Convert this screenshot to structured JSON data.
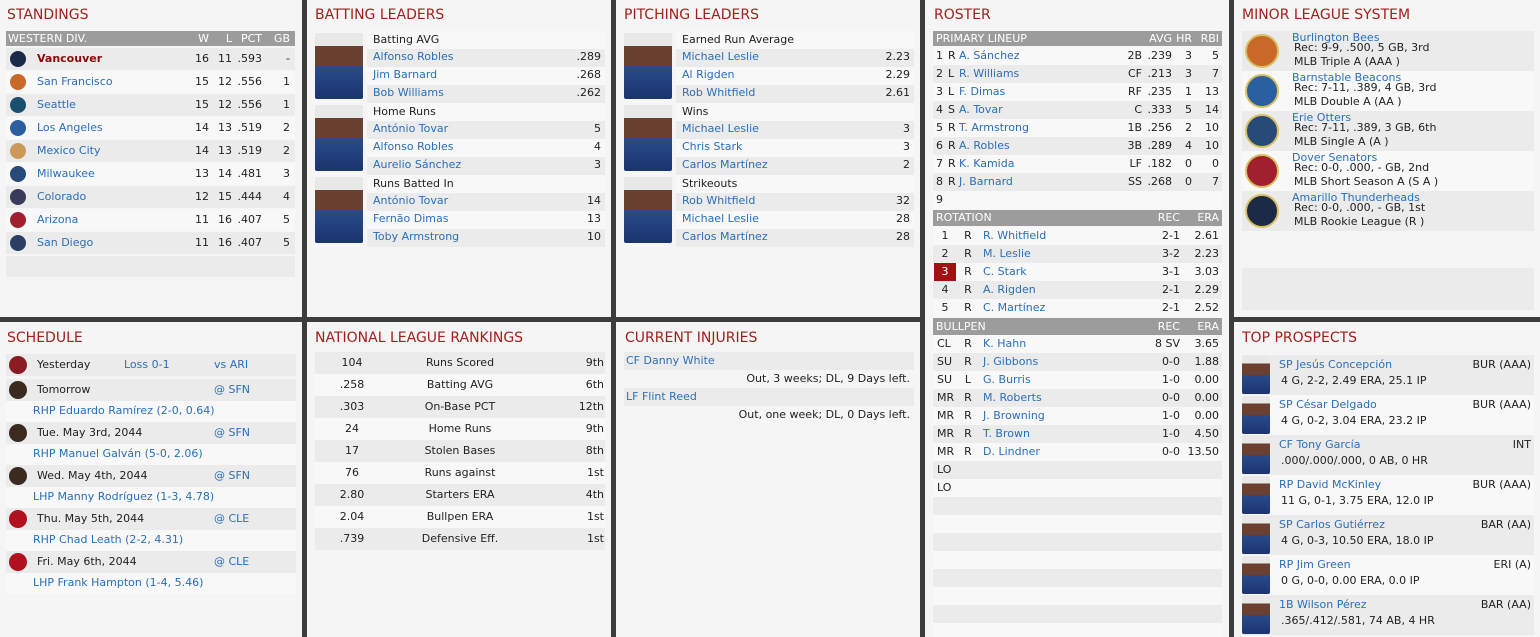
{
  "standings": {
    "title": "STANDINGS",
    "header": [
      "WESTERN DIV.",
      "W",
      "L",
      "PCT",
      "GB"
    ],
    "rows": [
      [
        "Vancouver",
        "16",
        "11",
        ".593",
        "-"
      ],
      [
        "San Francisco",
        "15",
        "12",
        ".556",
        "1"
      ],
      [
        "Seattle",
        "15",
        "12",
        ".556",
        "1"
      ],
      [
        "Los Angeles",
        "14",
        "13",
        ".519",
        "2"
      ],
      [
        "Mexico City",
        "14",
        "13",
        ".519",
        "2"
      ],
      [
        "Milwaukee",
        "13",
        "14",
        ".481",
        "3"
      ],
      [
        "Colorado",
        "12",
        "15",
        ".444",
        "4"
      ],
      [
        "Arizona",
        "11",
        "16",
        ".407",
        "5"
      ],
      [
        "San Diego",
        "11",
        "16",
        ".407",
        "5"
      ]
    ]
  },
  "batting": {
    "title": "BATTING LEADERS",
    "groups": [
      {
        "label": "Batting AVG",
        "players": [
          [
            "Alfonso Robles",
            ".289"
          ],
          [
            "Jim Barnard",
            ".268"
          ],
          [
            "Bob Williams",
            ".262"
          ]
        ]
      },
      {
        "label": "Home Runs",
        "players": [
          [
            "António Tovar",
            "5"
          ],
          [
            "Alfonso Robles",
            "4"
          ],
          [
            "Aurelio Sánchez",
            "3"
          ]
        ]
      },
      {
        "label": "Runs Batted In",
        "players": [
          [
            "António Tovar",
            "14"
          ],
          [
            "Fernão Dimas",
            "13"
          ],
          [
            "Toby Armstrong",
            "10"
          ]
        ]
      }
    ]
  },
  "pitching": {
    "title": "PITCHING LEADERS",
    "groups": [
      {
        "label": "Earned Run Average",
        "players": [
          [
            "Michael Leslie",
            "2.23"
          ],
          [
            "Al Rigden",
            "2.29"
          ],
          [
            "Rob Whitfield",
            "2.61"
          ]
        ]
      },
      {
        "label": "Wins",
        "players": [
          [
            "Michael Leslie",
            "3"
          ],
          [
            "Chris Stark",
            "3"
          ],
          [
            "Carlos Martínez",
            "2"
          ]
        ]
      },
      {
        "label": "Strikeouts",
        "players": [
          [
            "Rob Whitfield",
            "32"
          ],
          [
            "Michael Leslie",
            "28"
          ],
          [
            "Carlos Martínez",
            "28"
          ]
        ]
      }
    ]
  },
  "roster": {
    "title": "ROSTER",
    "lineup": {
      "header": [
        "PRIMARY LINEUP",
        "AVG",
        "HR",
        "RBI"
      ],
      "rows": [
        [
          "1",
          "R",
          "A. Sánchez",
          "2B",
          ".239",
          "3",
          "5"
        ],
        [
          "2",
          "L",
          "R. Williams",
          "CF",
          ".213",
          "3",
          "7"
        ],
        [
          "3",
          "L",
          "F. Dimas",
          "RF",
          ".235",
          "1",
          "13"
        ],
        [
          "4",
          "S",
          "A. Tovar",
          "C",
          ".333",
          "5",
          "14"
        ],
        [
          "5",
          "R",
          "T. Armstrong",
          "1B",
          ".256",
          "2",
          "10"
        ],
        [
          "6",
          "R",
          "A. Robles",
          "3B",
          ".289",
          "4",
          "10"
        ],
        [
          "7",
          "R",
          "K. Kamida",
          "LF",
          ".182",
          "0",
          "0"
        ],
        [
          "8",
          "R",
          "J. Barnard",
          "SS",
          ".268",
          "0",
          "7"
        ],
        [
          "9"
        ]
      ]
    },
    "rotation": {
      "header": [
        "ROTATION",
        "REC",
        "ERA"
      ],
      "rows": [
        [
          "1",
          "R",
          "R. Whitfield",
          "2-1",
          "2.61"
        ],
        [
          "2",
          "R",
          "M. Leslie",
          "3-2",
          "2.23"
        ],
        [
          "3",
          "R",
          "C. Stark",
          "3-1",
          "3.03"
        ],
        [
          "4",
          "R",
          "A. Rigden",
          "2-1",
          "2.29"
        ],
        [
          "5",
          "R",
          "C. Martínez",
          "2-1",
          "2.52"
        ]
      ]
    },
    "bullpen": {
      "header": [
        "BULLPEN",
        "REC",
        "ERA"
      ],
      "rows": [
        [
          "CL",
          "R",
          "K. Hahn",
          "8 SV",
          "3.65"
        ],
        [
          "SU",
          "R",
          "J. Gibbons",
          "0-0",
          "1.88"
        ],
        [
          "SU",
          "L",
          "G. Burris",
          "1-0",
          "0.00"
        ],
        [
          "MR",
          "R",
          "M. Roberts",
          "0-0",
          "0.00"
        ],
        [
          "MR",
          "R",
          "J. Browning",
          "1-0",
          "0.00"
        ],
        [
          "MR",
          "R",
          "T. Brown",
          "1-0",
          "4.50"
        ],
        [
          "MR",
          "R",
          "D. Lindner",
          "0-0",
          "13.50"
        ],
        [
          "LO"
        ],
        [
          "LO"
        ]
      ]
    }
  },
  "minor": {
    "title": "MINOR LEAGUE SYSTEM",
    "teams": [
      {
        "name": "Burlington Bees",
        "rec": "Rec: 9-9, .500, 5 GB, 3rd",
        "level": "MLB Triple A (AAA )"
      },
      {
        "name": "Barnstable Beacons",
        "rec": "Rec: 7-11, .389, 4 GB, 3rd",
        "level": "MLB Double A (AA )"
      },
      {
        "name": "Erie Otters",
        "rec": "Rec: 7-11, .389, 3 GB, 6th",
        "level": "MLB Single A (A )"
      },
      {
        "name": "Dover Senators",
        "rec": "Rec: 0-0, .000, - GB, 2nd",
        "level": "MLB Short Season A (S A )"
      },
      {
        "name": "Amarillo Thunderheads",
        "rec": "Rec: 0-0, .000, - GB, 1st",
        "level": "MLB Rookie League (R )"
      }
    ]
  },
  "schedule": {
    "title": "SCHEDULE",
    "games": [
      {
        "day": "Yesterday",
        "result": "Loss 0-1",
        "opp": "vs ARI"
      },
      {
        "day": "Tomorrow",
        "opp": "@ SFN",
        "pitcher": "RHP Eduardo Ramírez (2-0, 0.64)"
      },
      {
        "day": "Tue. May 3rd, 2044",
        "opp": "@ SFN",
        "pitcher": "RHP Manuel Galván (5-0, 2.06)"
      },
      {
        "day": "Wed. May 4th, 2044",
        "opp": "@ SFN",
        "pitcher": "LHP Manny Rodríguez (1-3, 4.78)"
      },
      {
        "day": "Thu. May 5th, 2044",
        "opp": "@ CLE",
        "pitcher": "RHP Chad Leath (2-2, 4.31)"
      },
      {
        "day": "Fri. May 6th, 2044",
        "opp": "@ CLE",
        "pitcher": "LHP Frank Hampton (1-4, 5.46)"
      }
    ]
  },
  "rankings": {
    "title": "NATIONAL LEAGUE RANKINGS",
    "rows": [
      [
        "104",
        "Runs Scored",
        "9th"
      ],
      [
        ".258",
        "Batting AVG",
        "6th"
      ],
      [
        ".303",
        "On-Base PCT",
        "12th"
      ],
      [
        "24",
        "Home Runs",
        "9th"
      ],
      [
        "17",
        "Stolen Bases",
        "8th"
      ],
      [
        "76",
        "Runs against",
        "1st"
      ],
      [
        "2.80",
        "Starters ERA",
        "4th"
      ],
      [
        "2.04",
        "Bullpen ERA",
        "1st"
      ],
      [
        ".739",
        "Defensive Eff.",
        "1st"
      ]
    ]
  },
  "injuries": {
    "title": "CURRENT INJURIES",
    "rows": [
      {
        "player": "CF Danny White",
        "status": "Out, 3 weeks; DL, 9 Days left."
      },
      {
        "player": "LF Flint Reed",
        "status": "Out, one week; DL, 0 Days left."
      }
    ]
  },
  "prospects": {
    "title": "TOP PROSPECTS",
    "rows": [
      {
        "name": "SP Jesús Concepción",
        "team": "BUR (AAA)",
        "line": "4 G, 2-2, 2.49 ERA, 25.1 IP"
      },
      {
        "name": "SP César Delgado",
        "team": "BUR (AAA)",
        "line": "4 G, 0-2, 3.04 ERA, 23.2 IP"
      },
      {
        "name": "CF Tony García",
        "team": "INT",
        "line": ".000/.000/.000, 0 AB, 0 HR"
      },
      {
        "name": "RP David McKinley",
        "team": "BUR (AAA)",
        "line": "11 G, 0-1, 3.75 ERA, 12.0 IP"
      },
      {
        "name": "SP Carlos Gutiérrez",
        "team": "BAR (AA)",
        "line": "4 G, 0-3, 10.50 ERA, 18.0 IP"
      },
      {
        "name": "RP Jim Green",
        "team": "ERI (A)",
        "line": "0 G, 0-0, 0.00 ERA, 0.0 IP"
      },
      {
        "name": "1B Wilson Pérez",
        "team": "BAR (AA)",
        "line": ".365/.412/.581, 74 AB, 4 HR"
      }
    ]
  }
}
